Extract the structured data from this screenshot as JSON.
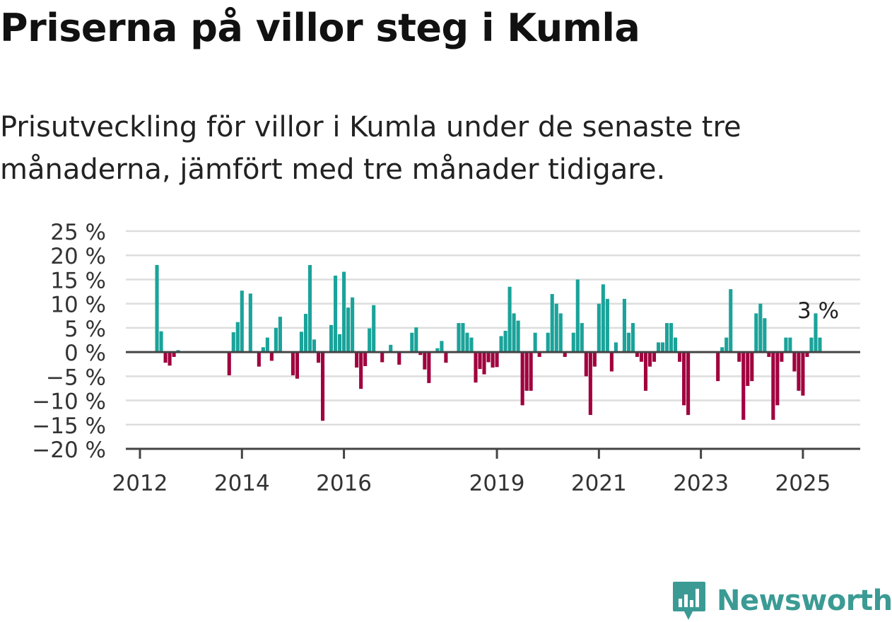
{
  "title": "Priserna på villor steg i Kumla",
  "subtitle": "Prisutveckling för villor i Kumla under de senaste tre månaderna, jämfört med tre månader tidigare.",
  "brand": {
    "name": "Newsworthy",
    "color": "#3b9b94",
    "icon": "newsworthy-logo-icon"
  },
  "chart_data": {
    "type": "bar",
    "title": "Priserna på villor steg i Kumla",
    "xlabel": "",
    "ylabel": "",
    "ylim": [
      -20,
      25
    ],
    "grid": true,
    "colors": {
      "positive": "#1aa39a",
      "negative": "#a0003e",
      "grid": "#dddddd",
      "axis": "#444444"
    },
    "y_ticks": [
      {
        "value": 25,
        "label": "25 %"
      },
      {
        "value": 20,
        "label": "20 %"
      },
      {
        "value": 15,
        "label": "15 %"
      },
      {
        "value": 10,
        "label": "10 %"
      },
      {
        "value": 5,
        "label": "5 %"
      },
      {
        "value": 0,
        "label": "0 %"
      },
      {
        "value": -5,
        "label": "−5 %"
      },
      {
        "value": -10,
        "label": "−10 %"
      },
      {
        "value": -15,
        "label": "−15 %"
      },
      {
        "value": -20,
        "label": "−20 %"
      }
    ],
    "x_ticks": [
      {
        "value": "2012-01",
        "label": "2012"
      },
      {
        "value": "2014-01",
        "label": "2014"
      },
      {
        "value": "2016-01",
        "label": "2016"
      },
      {
        "value": "2019-01",
        "label": "2019"
      },
      {
        "value": "2021-01",
        "label": "2021"
      },
      {
        "value": "2023-01",
        "label": "2023"
      },
      {
        "value": "2025-01",
        "label": "2025"
      }
    ],
    "annotation": {
      "x": "2025-05",
      "value": 3,
      "label": "3 %"
    },
    "points": [
      {
        "x": "2012-05",
        "y": 18
      },
      {
        "x": "2012-06",
        "y": 4.3
      },
      {
        "x": "2012-07",
        "y": -2.2
      },
      {
        "x": "2012-08",
        "y": -2.8
      },
      {
        "x": "2012-09",
        "y": -1
      },
      {
        "x": "2012-10",
        "y": 0.4
      },
      {
        "x": "2013-10",
        "y": -4.8
      },
      {
        "x": "2013-11",
        "y": 4.1
      },
      {
        "x": "2013-12",
        "y": 6.2
      },
      {
        "x": "2014-01",
        "y": 12.7
      },
      {
        "x": "2014-03",
        "y": 12.1
      },
      {
        "x": "2014-05",
        "y": -3
      },
      {
        "x": "2014-06",
        "y": 1
      },
      {
        "x": "2014-07",
        "y": 3
      },
      {
        "x": "2014-08",
        "y": -1.8
      },
      {
        "x": "2014-09",
        "y": 5
      },
      {
        "x": "2014-10",
        "y": 7.3
      },
      {
        "x": "2015-01",
        "y": -4.8
      },
      {
        "x": "2015-02",
        "y": -5.5
      },
      {
        "x": "2015-03",
        "y": 4.2
      },
      {
        "x": "2015-04",
        "y": 7.9
      },
      {
        "x": "2015-05",
        "y": 18
      },
      {
        "x": "2015-06",
        "y": 2.6
      },
      {
        "x": "2015-07",
        "y": -2.2
      },
      {
        "x": "2015-08",
        "y": -14.2
      },
      {
        "x": "2015-10",
        "y": 5.6
      },
      {
        "x": "2015-11",
        "y": 15.8
      },
      {
        "x": "2015-12",
        "y": 3.7
      },
      {
        "x": "2016-01",
        "y": 16.6
      },
      {
        "x": "2016-02",
        "y": 9.2
      },
      {
        "x": "2016-03",
        "y": 11.3
      },
      {
        "x": "2016-04",
        "y": -3.2
      },
      {
        "x": "2016-05",
        "y": -7.6
      },
      {
        "x": "2016-06",
        "y": -2.9
      },
      {
        "x": "2016-07",
        "y": 4.9
      },
      {
        "x": "2016-08",
        "y": 9.7
      },
      {
        "x": "2016-10",
        "y": -2.1
      },
      {
        "x": "2016-12",
        "y": 1.5
      },
      {
        "x": "2017-02",
        "y": -2.6
      },
      {
        "x": "2017-05",
        "y": 4
      },
      {
        "x": "2017-06",
        "y": 5.1
      },
      {
        "x": "2017-07",
        "y": -0.6
      },
      {
        "x": "2017-08",
        "y": -3.6
      },
      {
        "x": "2017-09",
        "y": -6.4
      },
      {
        "x": "2017-11",
        "y": 0.8
      },
      {
        "x": "2017-12",
        "y": 2.3
      },
      {
        "x": "2018-01",
        "y": -2.2
      },
      {
        "x": "2018-04",
        "y": 6
      },
      {
        "x": "2018-05",
        "y": 6
      },
      {
        "x": "2018-06",
        "y": 4
      },
      {
        "x": "2018-07",
        "y": 3
      },
      {
        "x": "2018-08",
        "y": -6.3
      },
      {
        "x": "2018-09",
        "y": -3.5
      },
      {
        "x": "2018-10",
        "y": -4.6
      },
      {
        "x": "2018-11",
        "y": -2.1
      },
      {
        "x": "2018-12",
        "y": -3.2
      },
      {
        "x": "2019-01",
        "y": -3.1
      },
      {
        "x": "2019-02",
        "y": 3.3
      },
      {
        "x": "2019-03",
        "y": 4.4
      },
      {
        "x": "2019-04",
        "y": 13.5
      },
      {
        "x": "2019-05",
        "y": 8
      },
      {
        "x": "2019-06",
        "y": 6.5
      },
      {
        "x": "2019-07",
        "y": -11
      },
      {
        "x": "2019-08",
        "y": -8
      },
      {
        "x": "2019-09",
        "y": -8
      },
      {
        "x": "2019-10",
        "y": 4
      },
      {
        "x": "2019-11",
        "y": -1
      },
      {
        "x": "2020-01",
        "y": 4
      },
      {
        "x": "2020-02",
        "y": 12
      },
      {
        "x": "2020-03",
        "y": 10
      },
      {
        "x": "2020-04",
        "y": 8
      },
      {
        "x": "2020-05",
        "y": -1
      },
      {
        "x": "2020-07",
        "y": 4
      },
      {
        "x": "2020-08",
        "y": 15
      },
      {
        "x": "2020-09",
        "y": 6
      },
      {
        "x": "2020-10",
        "y": -5
      },
      {
        "x": "2020-11",
        "y": -13
      },
      {
        "x": "2020-12",
        "y": -3
      },
      {
        "x": "2021-01",
        "y": 10
      },
      {
        "x": "2021-02",
        "y": 14
      },
      {
        "x": "2021-03",
        "y": 11
      },
      {
        "x": "2021-04",
        "y": -4
      },
      {
        "x": "2021-05",
        "y": 2
      },
      {
        "x": "2021-07",
        "y": 11
      },
      {
        "x": "2021-08",
        "y": 4
      },
      {
        "x": "2021-09",
        "y": 6
      },
      {
        "x": "2021-10",
        "y": -1
      },
      {
        "x": "2021-11",
        "y": -2
      },
      {
        "x": "2021-12",
        "y": -8
      },
      {
        "x": "2022-01",
        "y": -3
      },
      {
        "x": "2022-02",
        "y": -2
      },
      {
        "x": "2022-03",
        "y": 2
      },
      {
        "x": "2022-04",
        "y": 2
      },
      {
        "x": "2022-05",
        "y": 6
      },
      {
        "x": "2022-06",
        "y": 6
      },
      {
        "x": "2022-07",
        "y": 3
      },
      {
        "x": "2022-08",
        "y": -2
      },
      {
        "x": "2022-09",
        "y": -11
      },
      {
        "x": "2022-10",
        "y": -13
      },
      {
        "x": "2023-05",
        "y": -6
      },
      {
        "x": "2023-06",
        "y": 1
      },
      {
        "x": "2023-07",
        "y": 3
      },
      {
        "x": "2023-08",
        "y": 13
      },
      {
        "x": "2023-10",
        "y": -2
      },
      {
        "x": "2023-11",
        "y": -14
      },
      {
        "x": "2023-12",
        "y": -7
      },
      {
        "x": "2024-01",
        "y": -6
      },
      {
        "x": "2024-02",
        "y": 8
      },
      {
        "x": "2024-03",
        "y": 10
      },
      {
        "x": "2024-04",
        "y": 7
      },
      {
        "x": "2024-05",
        "y": -1
      },
      {
        "x": "2024-06",
        "y": -14
      },
      {
        "x": "2024-07",
        "y": -11
      },
      {
        "x": "2024-08",
        "y": -2
      },
      {
        "x": "2024-09",
        "y": 3
      },
      {
        "x": "2024-10",
        "y": 3
      },
      {
        "x": "2024-11",
        "y": -4
      },
      {
        "x": "2024-12",
        "y": -8
      },
      {
        "x": "2025-01",
        "y": -9
      },
      {
        "x": "2025-02",
        "y": -1
      },
      {
        "x": "2025-03",
        "y": 3
      },
      {
        "x": "2025-04",
        "y": 8
      },
      {
        "x": "2025-05",
        "y": 3
      }
    ]
  }
}
